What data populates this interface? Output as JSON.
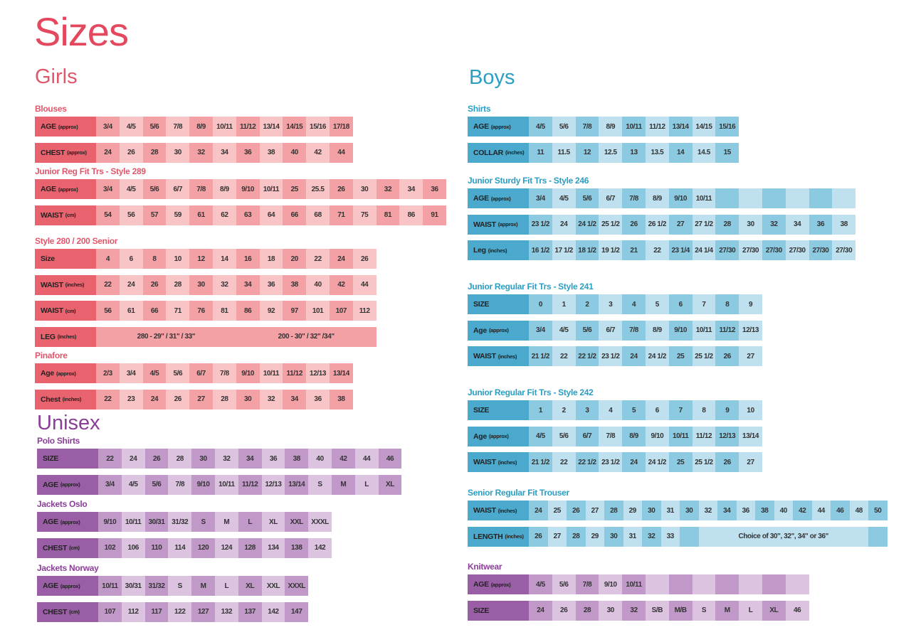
{
  "title": "Sizes",
  "girls": {
    "heading": "Girls",
    "tables": [
      {
        "title": "Blouses",
        "rows": [
          {
            "label": "AGE",
            "unit": "(approx)",
            "cells": [
              "3/4",
              "4/5",
              "5/6",
              "7/8",
              "8/9",
              "10/11",
              "11/12",
              "13/14",
              "14/15",
              "15/16",
              "17/18"
            ]
          },
          {
            "label": "CHEST",
            "unit": "(approx)",
            "cells": [
              "24",
              "26",
              "28",
              "30",
              "32",
              "34",
              "36",
              "38",
              "40",
              "42",
              "44"
            ]
          }
        ]
      },
      {
        "title": "Junior Reg Fit Trs - Style 289",
        "rows": [
          {
            "label": "AGE",
            "unit": "(approx)",
            "cells": [
              "3/4",
              "4/5",
              "5/6",
              "6/7",
              "7/8",
              "8/9",
              "9/10",
              "10/11",
              "25",
              "25.5",
              "26",
              "30",
              "32",
              "34",
              "36"
            ]
          },
          {
            "label": "WAIST",
            "unit": "(cm)",
            "cells": [
              "54",
              "56",
              "57",
              "59",
              "61",
              "62",
              "63",
              "64",
              "66",
              "68",
              "71",
              "75",
              "81",
              "86",
              "91"
            ]
          }
        ]
      },
      {
        "title": "Style 280 / 200 Senior",
        "rows": [
          {
            "label": "Size",
            "unit": "",
            "cells": [
              "4",
              "6",
              "8",
              "10",
              "12",
              "14",
              "16",
              "18",
              "20",
              "22",
              "24",
              "26"
            ]
          },
          {
            "label": "WAIST",
            "unit": "(inches)",
            "cells": [
              "22",
              "24",
              "26",
              "28",
              "30",
              "32",
              "34",
              "36",
              "38",
              "40",
              "42",
              "44"
            ]
          },
          {
            "label": "WAIST",
            "unit": "(cm)",
            "cells": [
              "56",
              "61",
              "66",
              "71",
              "76",
              "81",
              "86",
              "92",
              "97",
              "101",
              "107",
              "112"
            ]
          },
          {
            "label": "LEG",
            "unit": "(inches)",
            "cells": [
              {
                "text": "280 - 29\" / 31\" / 33\"",
                "span": 6
              },
              {
                "text": "200 - 30\" / 32\" /34\"",
                "span": 6
              }
            ]
          }
        ]
      },
      {
        "title": "Pinafore",
        "rows": [
          {
            "label": "Age",
            "unit": "(approx)",
            "cells": [
              "2/3",
              "3/4",
              "4/5",
              "5/6",
              "6/7",
              "7/8",
              "9/10",
              "10/11",
              "11/12",
              "12/13",
              "13/14"
            ]
          },
          {
            "label": "Chest",
            "unit": "(inches)",
            "cells": [
              "22",
              "23",
              "24",
              "26",
              "27",
              "28",
              "30",
              "32",
              "34",
              "36",
              "38"
            ]
          }
        ]
      }
    ]
  },
  "unisex": {
    "heading": "Unisex",
    "tables": [
      {
        "title": "Polo Shirts",
        "rows": [
          {
            "label": "SIZE",
            "unit": "",
            "cells": [
              "22",
              "24",
              "26",
              "28",
              "30",
              "32",
              "34",
              "36",
              "38",
              "40",
              "42",
              "44",
              "46"
            ]
          },
          {
            "label": "AGE",
            "unit": "(approx)",
            "cells": [
              "3/4",
              "4/5",
              "5/6",
              "7/8",
              "9/10",
              "10/11",
              "11/12",
              "12/13",
              "13/14",
              "S",
              "M",
              "L",
              "XL"
            ]
          }
        ]
      },
      {
        "title": "Jackets Oslo",
        "rows": [
          {
            "label": "AGE",
            "unit": "(approx)",
            "cells": [
              "9/10",
              "10/11",
              "30/31",
              "31/32",
              "S",
              "M",
              "L",
              "XL",
              "XXL",
              "XXXL"
            ]
          },
          {
            "label": "CHEST",
            "unit": "(cm)",
            "cells": [
              "102",
              "106",
              "110",
              "114",
              "120",
              "124",
              "128",
              "134",
              "138",
              "142"
            ]
          }
        ]
      },
      {
        "title": "Jackets Norway",
        "rows": [
          {
            "label": "AGE",
            "unit": "(approx)",
            "cells": [
              "10/11",
              "30/31",
              "31/32",
              "S",
              "M",
              "L",
              "XL",
              "XXL",
              "XXXL"
            ]
          },
          {
            "label": "CHEST",
            "unit": "(cm)",
            "cells": [
              "107",
              "112",
              "117",
              "122",
              "127",
              "132",
              "137",
              "142",
              "147"
            ]
          }
        ]
      }
    ]
  },
  "boys": {
    "heading": "Boys",
    "tables": [
      {
        "title": "Shirts",
        "rows": [
          {
            "label": "AGE",
            "unit": "(approx)",
            "cells": [
              "4/5",
              "5/6",
              "7/8",
              "8/9",
              "10/11",
              "11/12",
              "13/14",
              "14/15",
              "15/16"
            ]
          },
          {
            "label": "COLLAR",
            "unit": "(inches)",
            "cells": [
              "11",
              "11.5",
              "12",
              "12.5",
              "13",
              "13.5",
              "14",
              "14.5",
              "15"
            ]
          }
        ]
      },
      {
        "title": "Junior Sturdy Fit Trs - Style 246",
        "rows": [
          {
            "label": "AGE",
            "unit": "(approx)",
            "cells": [
              "3/4",
              "4/5",
              "5/6",
              "6/7",
              "7/8",
              "8/9",
              "9/10",
              "10/11",
              "",
              "",
              "",
              "",
              "",
              ""
            ]
          },
          {
            "label": "WAIST",
            "unit": "(approx)",
            "cells": [
              "23 1/2",
              "24",
              "24 1/2",
              "25 1/2",
              "26",
              "26 1/2",
              "27",
              "27 1/2",
              "28",
              "30",
              "32",
              "34",
              "36",
              "38"
            ]
          },
          {
            "label": "Leg",
            "unit": "(inches)",
            "cells": [
              "16 1/2",
              "17 1/2",
              "18 1/2",
              "19 1/2",
              "21",
              "22",
              "23 1/4",
              "24 1/4",
              "27/30",
              "27/30",
              "27/30",
              "27/30",
              "27/30",
              "27/30"
            ]
          }
        ]
      },
      {
        "title": "Junior Regular Fit Trs - Style 241",
        "rows": [
          {
            "label": "SIZE",
            "unit": "",
            "cells": [
              "0",
              "1",
              "2",
              "3",
              "4",
              "5",
              "6",
              "7",
              "8",
              "9"
            ]
          },
          {
            "label": "Age",
            "unit": "(approx)",
            "cells": [
              "3/4",
              "4/5",
              "5/6",
              "6/7",
              "7/8",
              "8/9",
              "9/10",
              "10/11",
              "11/12",
              "12/13"
            ]
          },
          {
            "label": "WAIST",
            "unit": "(inches)",
            "cells": [
              "21 1/2",
              "22",
              "22 1/2",
              "23 1/2",
              "24",
              "24 1/2",
              "25",
              "25 1/2",
              "26",
              "27"
            ]
          }
        ]
      },
      {
        "title": "Junior Regular Fit Trs - Style 242",
        "rows": [
          {
            "label": "SIZE",
            "unit": "",
            "cells": [
              "1",
              "2",
              "3",
              "4",
              "5",
              "6",
              "7",
              "8",
              "9",
              "10"
            ]
          },
          {
            "label": "Age",
            "unit": "(approx)",
            "cells": [
              "4/5",
              "5/6",
              "6/7",
              "7/8",
              "8/9",
              "9/10",
              "10/11",
              "11/12",
              "12/13",
              "13/14"
            ]
          },
          {
            "label": "WAIST",
            "unit": "(inches)",
            "cells": [
              "21 1/2",
              "22",
              "22 1/2",
              "23 1/2",
              "24",
              "24 1/2",
              "25",
              "25 1/2",
              "26",
              "27"
            ]
          }
        ]
      },
      {
        "title": "Senior Regular Fit Trouser",
        "rows": [
          {
            "label": "WAIST",
            "unit": "(inches)",
            "cells": [
              "24",
              "25",
              "26",
              "27",
              "28",
              "29",
              "30",
              "31",
              "30",
              "32",
              "34",
              "36",
              "38",
              "40",
              "42",
              "44",
              "46",
              "48",
              "50"
            ]
          },
          {
            "label": "LENGTH",
            "unit": "(inches)",
            "cells": [
              "26",
              "27",
              "28",
              "29",
              "30",
              "31",
              "32",
              "33",
              "",
              "",
              {
                "text": "Choice of 30\", 32\", 34\" or 36\"",
                "span": 7
              },
              "",
              ""
            ]
          }
        ]
      },
      {
        "title": "Knitwear",
        "rows": [
          {
            "label": "AGE",
            "unit": "(approx)",
            "cells": [
              "4/5",
              "5/6",
              "7/8",
              "9/10",
              "10/11",
              "",
              "",
              "",
              "",
              "",
              "",
              ""
            ]
          },
          {
            "label": "SIZE",
            "unit": "",
            "cells": [
              "24",
              "26",
              "28",
              "30",
              "32",
              "S/B",
              "M/B",
              "S",
              "M",
              "L",
              "XL",
              "46"
            ]
          }
        ]
      }
    ]
  },
  "colors": {
    "girls": "#e9636f",
    "boys": "#4aa9cd",
    "unisex": "#9a5ea6",
    "title": "#e4485e"
  }
}
